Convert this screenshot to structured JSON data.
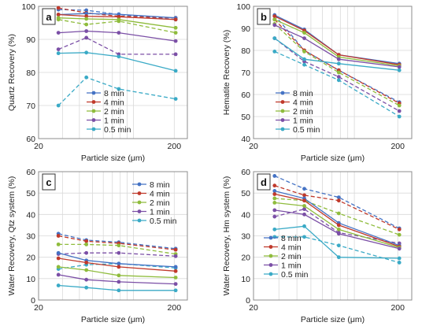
{
  "colors": {
    "8 min": "#4472c4",
    "4 min": "#c0392b",
    "2 min": "#8fbc3c",
    "1 min": "#7b4fa6",
    "0.5 min": "#3aaac6"
  },
  "chart_data": [
    {
      "panel": "a",
      "type": "line",
      "ylabel": "Quartz Recovery (%)",
      "xlabel": "Particle size (μm)",
      "xscale": "log",
      "xlim": [
        20,
        250
      ],
      "ylim": [
        60,
        100
      ],
      "yticks": [
        60,
        70,
        80,
        90,
        100
      ],
      "xticks": [
        20,
        200
      ],
      "x": [
        28,
        45,
        78,
        205
      ],
      "legend_position": "lower-center",
      "solid_series": [
        {
          "name": "8 min",
          "values": [
            97.5,
            97.8,
            97.6,
            96.5
          ]
        },
        {
          "name": "4 min",
          "values": [
            97.5,
            97.0,
            96.8,
            96.0
          ]
        },
        {
          "name": "2 min",
          "values": [
            96.5,
            96.2,
            96.0,
            93.5
          ]
        },
        {
          "name": "1 min",
          "values": [
            92.0,
            92.5,
            92.0,
            89.5
          ]
        },
        {
          "name": "0.5 min",
          "values": [
            85.8,
            86.0,
            84.8,
            80.5
          ]
        }
      ],
      "dashed_series": [
        {
          "name": "8 min",
          "values": [
            99.0,
            98.8,
            97.5,
            96.0
          ]
        },
        {
          "name": "4 min",
          "values": [
            99.5,
            98.0,
            97.0,
            96.5
          ]
        },
        {
          "name": "2 min",
          "values": [
            96.0,
            94.5,
            95.5,
            92.0
          ]
        },
        {
          "name": "1 min",
          "values": [
            87.0,
            90.5,
            85.5,
            85.5
          ]
        },
        {
          "name": "0.5 min",
          "values": [
            70.0,
            78.5,
            75.0,
            72.0
          ]
        }
      ]
    },
    {
      "panel": "b",
      "type": "line",
      "ylabel": "Hematite Recovery (%)",
      "xlabel": "Particle size (μm)",
      "xscale": "log",
      "xlim": [
        20,
        250
      ],
      "ylim": [
        40,
        100
      ],
      "yticks": [
        40,
        50,
        60,
        70,
        80,
        90,
        100
      ],
      "xticks": [
        20,
        200
      ],
      "x": [
        28,
        45,
        78,
        205
      ],
      "legend_position": "lower-left",
      "solid_series": [
        {
          "name": "8 min",
          "values": [
            96.0,
            89.5,
            78.0,
            74.0
          ]
        },
        {
          "name": "4 min",
          "values": [
            95.5,
            89.0,
            78.0,
            73.5
          ]
        },
        {
          "name": "2 min",
          "values": [
            94.0,
            88.0,
            77.0,
            73.0
          ]
        },
        {
          "name": "1 min",
          "values": [
            91.5,
            85.5,
            76.0,
            72.5
          ]
        },
        {
          "name": "0.5 min",
          "values": [
            85.5,
            76.0,
            74.0,
            71.0
          ]
        }
      ],
      "dashed_series": [
        {
          "name": "8 min",
          "values": [
            96.0,
            80.0,
            71.0,
            56.5
          ]
        },
        {
          "name": "4 min",
          "values": [
            94.0,
            80.0,
            71.0,
            56.0
          ]
        },
        {
          "name": "2 min",
          "values": [
            92.0,
            79.5,
            70.0,
            55.0
          ]
        },
        {
          "name": "1 min",
          "values": [
            85.5,
            75.0,
            68.0,
            52.5
          ]
        },
        {
          "name": "0.5 min",
          "values": [
            79.5,
            73.5,
            66.5,
            50.0
          ]
        }
      ]
    },
    {
      "panel": "c",
      "type": "line",
      "ylabel": "Water Recovery, Qtz system (%)",
      "xlabel": "Particle size (μm)",
      "xscale": "log",
      "xlim": [
        20,
        250
      ],
      "ylim": [
        0,
        60
      ],
      "yticks": [
        0,
        10,
        20,
        30,
        40,
        50,
        60
      ],
      "xticks": [
        20,
        200
      ],
      "x": [
        28,
        45,
        78,
        205
      ],
      "legend_position": "upper-right",
      "solid_series": [
        {
          "name": "8 min",
          "values": [
            22.0,
            18.5,
            17.0,
            15.5
          ]
        },
        {
          "name": "4 min",
          "values": [
            19.5,
            17.5,
            15.5,
            13.5
          ]
        },
        {
          "name": "2 min",
          "values": [
            15.5,
            14.0,
            11.5,
            10.5
          ]
        },
        {
          "name": "1 min",
          "values": [
            11.8,
            9.5,
            8.5,
            7.5
          ]
        },
        {
          "name": "0.5 min",
          "values": [
            6.8,
            5.8,
            4.5,
            4.5
          ]
        }
      ],
      "dashed_series": [
        {
          "name": "8 min",
          "values": [
            31.0,
            28.0,
            27.0,
            24.0
          ]
        },
        {
          "name": "4 min",
          "values": [
            30.0,
            27.5,
            26.5,
            23.5
          ]
        },
        {
          "name": "2 min",
          "values": [
            26.0,
            26.0,
            25.5,
            21.5
          ]
        },
        {
          "name": "1 min",
          "values": [
            21.5,
            22.0,
            22.0,
            20.5
          ]
        },
        {
          "name": "0.5 min",
          "values": [
            14.5,
            16.5,
            17.0,
            15.0
          ]
        }
      ]
    },
    {
      "panel": "d",
      "type": "line",
      "ylabel": "Water Recovery, Hm system (%)",
      "xlabel": "Particle size (μm)",
      "xscale": "log",
      "xlim": [
        20,
        250
      ],
      "ylim": [
        0,
        60
      ],
      "yticks": [
        0,
        10,
        20,
        30,
        40,
        50,
        60
      ],
      "xticks": [
        20,
        200
      ],
      "x": [
        28,
        45,
        78,
        205
      ],
      "legend_position": "lower-center",
      "solid_series": [
        {
          "name": "8 min",
          "values": [
            51.0,
            47.5,
            36.0,
            25.5
          ]
        },
        {
          "name": "4 min",
          "values": [
            49.5,
            46.5,
            35.0,
            25.0
          ]
        },
        {
          "name": "2 min",
          "values": [
            45.5,
            44.0,
            33.0,
            24.5
          ]
        },
        {
          "name": "1 min",
          "values": [
            42.0,
            40.0,
            31.0,
            24.0
          ]
        },
        {
          "name": "0.5 min",
          "values": [
            33.0,
            34.5,
            20.0,
            19.5
          ]
        }
      ],
      "dashed_series": [
        {
          "name": "8 min",
          "values": [
            58.0,
            52.0,
            48.0,
            33.5
          ]
        },
        {
          "name": "4 min",
          "values": [
            53.5,
            49.0,
            46.5,
            33.0
          ]
        },
        {
          "name": "2 min",
          "values": [
            47.5,
            46.5,
            40.5,
            30.5
          ]
        },
        {
          "name": "1 min",
          "values": [
            39.0,
            42.5,
            31.5,
            26.5
          ]
        },
        {
          "name": "0.5 min",
          "values": [
            29.5,
            29.5,
            25.5,
            17.5
          ]
        }
      ]
    }
  ]
}
